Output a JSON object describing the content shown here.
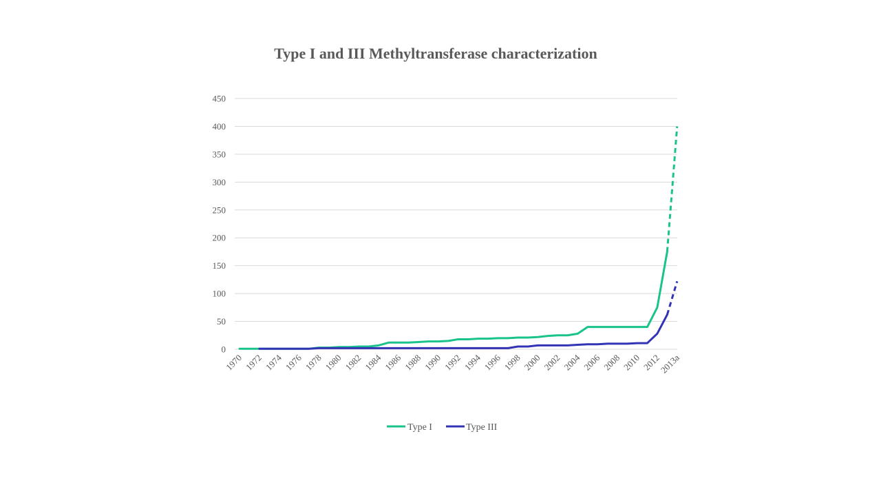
{
  "chart_data": {
    "type": "line",
    "title": "Type I and III Methyltransferase characterization",
    "xlabel": "",
    "ylabel": "",
    "ylim": [
      0,
      450
    ],
    "yticks": [
      0,
      50,
      100,
      150,
      200,
      250,
      300,
      350,
      400,
      450
    ],
    "grid": true,
    "legend": "bottom",
    "x": [
      "1970",
      "1971",
      "1972",
      "1973",
      "1974",
      "1975",
      "1976",
      "1977",
      "1978",
      "1979",
      "1980",
      "1981",
      "1982",
      "1983",
      "1984",
      "1985",
      "1986",
      "1987",
      "1988",
      "1989",
      "1990",
      "1991",
      "1992",
      "1993",
      "1994",
      "1995",
      "1996",
      "1997",
      "1998",
      "1999",
      "2000",
      "2001",
      "2002",
      "2003",
      "2004",
      "2005",
      "2006",
      "2007",
      "2008",
      "2009",
      "2010",
      "2011",
      "2012",
      "2013",
      "2013a"
    ],
    "xtick_labels": [
      "1970",
      "1972",
      "1974",
      "1976",
      "1978",
      "1980",
      "1982",
      "1984",
      "1986",
      "1988",
      "1990",
      "1992",
      "1994",
      "1996",
      "1998",
      "2000",
      "2002",
      "2004",
      "2006",
      "2008",
      "2010",
      "2012",
      "2013a"
    ],
    "series": [
      {
        "name": "Type I",
        "color": "#1ac28c",
        "values": [
          1,
          1,
          1,
          1,
          1,
          1,
          1,
          1,
          3,
          3,
          4,
          4,
          5,
          5,
          7,
          12,
          12,
          12,
          13,
          14,
          14,
          15,
          18,
          18,
          19,
          19,
          20,
          20,
          21,
          21,
          22,
          24,
          25,
          25,
          28,
          40,
          40,
          40,
          40,
          40,
          40,
          40,
          75,
          175,
          400
        ],
        "dashed_from_index": 43
      },
      {
        "name": "Type III",
        "color": "#3333b5",
        "values": [
          null,
          null,
          1,
          1,
          1,
          1,
          1,
          1,
          2,
          2,
          2,
          2,
          2,
          2,
          2,
          2,
          2,
          2,
          2,
          2,
          2,
          2,
          2,
          2,
          2,
          2,
          2,
          2,
          5,
          5,
          7,
          7,
          7,
          7,
          8,
          9,
          9,
          10,
          10,
          10,
          11,
          11,
          28,
          62,
          122
        ],
        "dashed_from_index": 43
      }
    ]
  }
}
